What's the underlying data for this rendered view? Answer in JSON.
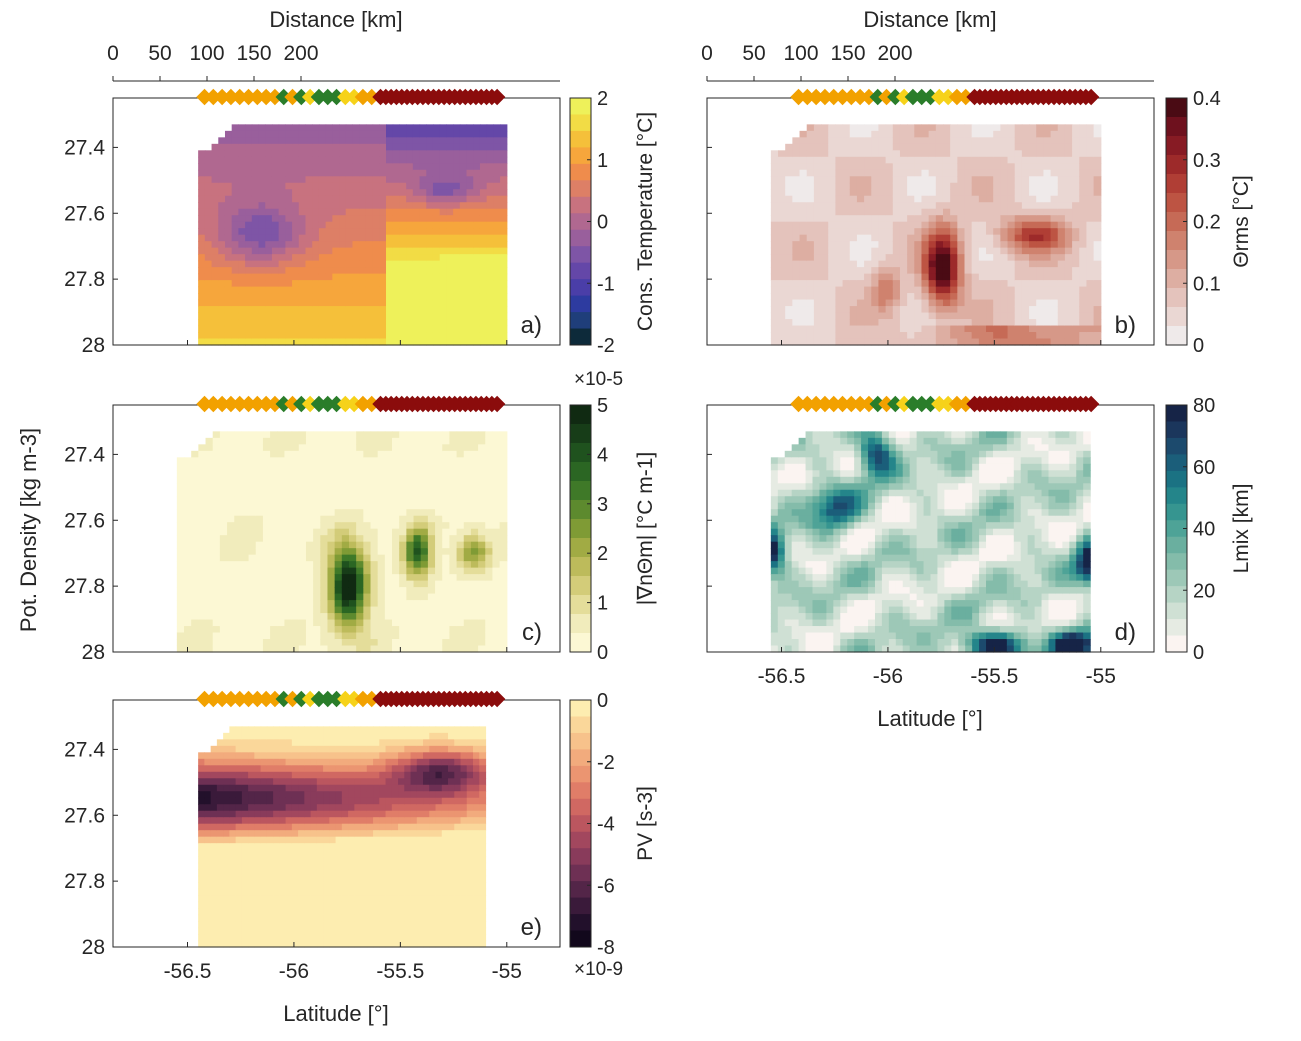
{
  "figure": {
    "distance_axis_label": "Distance [km]",
    "distance_ticks": [
      "0",
      "50",
      "100",
      "150",
      "200"
    ],
    "latitude_axis_label": "Latitude [°]",
    "latitude_ticks": [
      "-56.5",
      "-56",
      "-55.5",
      "-55"
    ],
    "density_axis_label": "Pot. Density [kg m-3]",
    "density_ticks": [
      "27.4",
      "27.6",
      "27.8",
      "28"
    ]
  },
  "chart_data": [
    {
      "panel": "a)",
      "type": "heatmap",
      "colorbar_label": "Cons. Temperature [°C]",
      "colorbar_ticks": [
        "-2",
        "-1",
        "0",
        "1",
        "2"
      ],
      "colorbar_range": [
        -2,
        2
      ],
      "colormap": [
        "#0d2a3a",
        "#1f3e7a",
        "#2d3ba0",
        "#4a3ea8",
        "#6447a8",
        "#7e55a6",
        "#995f9c",
        "#b06890",
        "#c8727f",
        "#dd7f66",
        "#ef8c4c",
        "#f6a63c",
        "#f5c03a",
        "#f2dc45",
        "#eef15a"
      ],
      "ylim": [
        27.25,
        28
      ],
      "xlim": [
        -56.85,
        -54.75
      ]
    },
    {
      "panel": "b)",
      "type": "heatmap",
      "colorbar_label": "Θrms [°C]",
      "colorbar_ticks": [
        "0",
        "0.1",
        "0.2",
        "0.3",
        "0.4"
      ],
      "colorbar_range": [
        0,
        0.4
      ],
      "colormap": [
        "#efeaea",
        "#ead7d3",
        "#e4c3bc",
        "#ddaea2",
        "#d69888",
        "#cf826e",
        "#c66a56",
        "#bd5443",
        "#b03e35",
        "#9d2a2a",
        "#871b24",
        "#6e111e",
        "#4a0b14"
      ],
      "ylim": [
        27.25,
        28
      ],
      "xlim": [
        -56.85,
        -54.75
      ]
    },
    {
      "panel": "c)",
      "type": "heatmap",
      "colorbar_label": "|∇nΘm| [°C m-1]",
      "colorbar_ticks": [
        "0",
        "1",
        "2",
        "3",
        "4",
        "5"
      ],
      "colorbar_exponent": "×10-5",
      "colorbar_range": [
        0,
        5
      ],
      "colormap": [
        "#fcf8d4",
        "#f1ecbc",
        "#e4dd9a",
        "#d3cc79",
        "#bdbb5b",
        "#a1ab44",
        "#7f9b35",
        "#5d8a2e",
        "#3f7928",
        "#2b6623",
        "#1f521e",
        "#173d18",
        "#102a12"
      ],
      "ylim": [
        27.25,
        28
      ],
      "xlim": [
        -56.85,
        -54.75
      ]
    },
    {
      "panel": "d)",
      "type": "heatmap",
      "colorbar_label": "Lmix [km]",
      "colorbar_ticks": [
        "0",
        "20",
        "40",
        "60",
        "80"
      ],
      "colorbar_range": [
        0,
        80
      ],
      "colormap": [
        "#fbf4f1",
        "#e6ebe3",
        "#cfe0d4",
        "#b6d4c5",
        "#9dc8b7",
        "#84bcaa",
        "#6aaf9f",
        "#4ea397",
        "#369590",
        "#24858a",
        "#1b7283",
        "#1b5e7a",
        "#1c4a6d",
        "#1b365c",
        "#162447"
      ],
      "ylim": [
        27.25,
        28
      ],
      "xlim": [
        -56.85,
        -54.75
      ]
    },
    {
      "panel": "e)",
      "type": "heatmap",
      "colorbar_label": "PV [s-3]",
      "colorbar_ticks": [
        "0",
        "-2",
        "-4",
        "-6",
        "-8"
      ],
      "colorbar_exponent": "×10-9",
      "colorbar_range": [
        -8,
        0
      ],
      "colormap": [
        "#fdedb0",
        "#fad79a",
        "#f7c28b",
        "#f2ab7d",
        "#eb9571",
        "#e07d68",
        "#d06862",
        "#bb565f",
        "#a2475e",
        "#893b5b",
        "#6e3054",
        "#532548",
        "#3a1a3a",
        "#22102b",
        "#12081c"
      ],
      "ylim": [
        27.25,
        28
      ],
      "xlim": [
        -56.85,
        -54.75
      ]
    }
  ],
  "station_markers": {
    "colors": [
      "#f2a100",
      "#2a7d2a",
      "#f6d21a",
      "#8b0c0c"
    ],
    "groups": [
      {
        "color": "orange",
        "count": 9
      },
      {
        "color": "green",
        "count": 1
      },
      {
        "color": "orange",
        "count": 1
      },
      {
        "color": "green",
        "count": 1
      },
      {
        "color": "yellow",
        "count": 1
      },
      {
        "color": "green",
        "count": 3
      },
      {
        "color": "yellow",
        "count": 2
      },
      {
        "color": "orange",
        "count": 2
      },
      {
        "color": "darkred",
        "count": 23
      }
    ]
  }
}
